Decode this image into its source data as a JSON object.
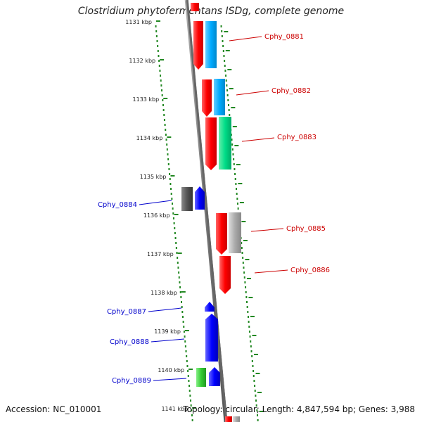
{
  "title": "Clostridium phytofermentans ISDg, complete genome",
  "footer": {
    "accession": "Accession: NC_010001",
    "summary": "Topology: circular; Length: 4,847,594 bp; Genes: 3,988"
  },
  "scale_ticks": [
    {
      "label": "1131 kbp",
      "pos": 1131
    },
    {
      "label": "1132 kbp",
      "pos": 1132
    },
    {
      "label": "1133 kbp",
      "pos": 1133
    },
    {
      "label": "1134 kbp",
      "pos": 1134
    },
    {
      "label": "1135 kbp",
      "pos": 1135
    },
    {
      "label": "1136 kbp",
      "pos": 1136
    },
    {
      "label": "1137 kbp",
      "pos": 1137
    },
    {
      "label": "1138 kbp",
      "pos": 1138
    },
    {
      "label": "1139 kbp",
      "pos": 1139
    },
    {
      "label": "1140 kbp",
      "pos": 1140
    },
    {
      "label": "1141 kbp",
      "pos": 1141
    }
  ],
  "gene_labels": [
    {
      "name": "Cphy_0881",
      "strand": "+",
      "color": "#cc0000"
    },
    {
      "name": "Cphy_0882",
      "strand": "+",
      "color": "#cc0000"
    },
    {
      "name": "Cphy_0883",
      "strand": "+",
      "color": "#cc0000"
    },
    {
      "name": "Cphy_0884",
      "strand": "-",
      "color": "#0000cc"
    },
    {
      "name": "Cphy_0885",
      "strand": "+",
      "color": "#cc0000"
    },
    {
      "name": "Cphy_0886",
      "strand": "+",
      "color": "#cc0000"
    },
    {
      "name": "Cphy_0887",
      "strand": "-",
      "color": "#0000cc"
    },
    {
      "name": "Cphy_0888",
      "strand": "-",
      "color": "#0000cc"
    },
    {
      "name": "Cphy_0889",
      "strand": "-",
      "color": "#0000cc"
    }
  ],
  "colors": {
    "forward": "#ff0000",
    "reverse": "#0000ff",
    "cog_blue": "#00aaff",
    "cog_green": "#00dd88",
    "cog_gray": "#aaaaaa",
    "cog_dark": "#555555",
    "cog_lime": "#33cc33",
    "dots": "#228822",
    "backbone": "#777777"
  }
}
